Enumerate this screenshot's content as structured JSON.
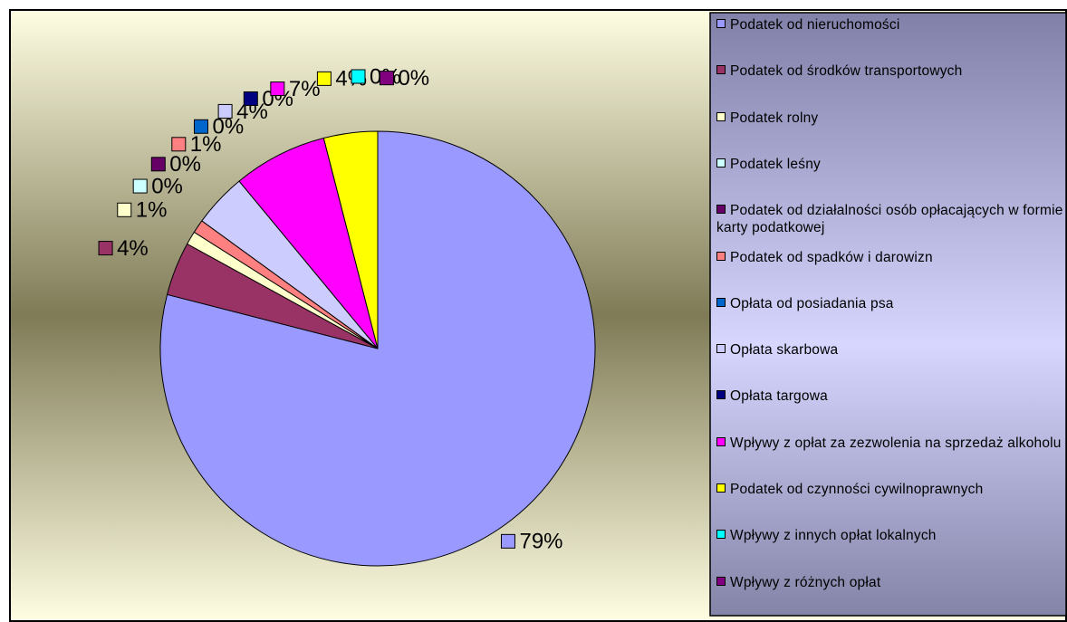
{
  "chart_data": {
    "type": "pie",
    "categories": [
      "Podatek od nieruchomości",
      "Podatek od środków transportowych",
      "Podatek rolny",
      "Podatek leśny",
      "Podatek od działalności osób opłacających w formie karty podatkowej",
      "Podatek od spadków i darowizn",
      "Opłata od posiadania psa",
      "Opłata skarbowa",
      "Opłata targowa",
      "Wpływy z opłat za zezwolenia na sprzedaż alkoholu",
      "Podatek od czynności cywilnoprawnych",
      "Wpływy z innych opłat lokalnych",
      "Wpływy z różnych opłat"
    ],
    "values": [
      79,
      4,
      1,
      0,
      0,
      1,
      0,
      4,
      0,
      7,
      4,
      0,
      0
    ],
    "value_labels": [
      "79%",
      "4%",
      "1%",
      "0%",
      "0%",
      "1%",
      "0%",
      "4%",
      "0%",
      "7%",
      "4%",
      "0%",
      "0%"
    ],
    "colors": [
      "#9999ff",
      "#993366",
      "#ffffcc",
      "#ccffff",
      "#660066",
      "#ff8080",
      "#0066cc",
      "#ccccff",
      "#000080",
      "#ff00ff",
      "#ffff00",
      "#00ffff",
      "#800080"
    ],
    "legend": "right"
  }
}
